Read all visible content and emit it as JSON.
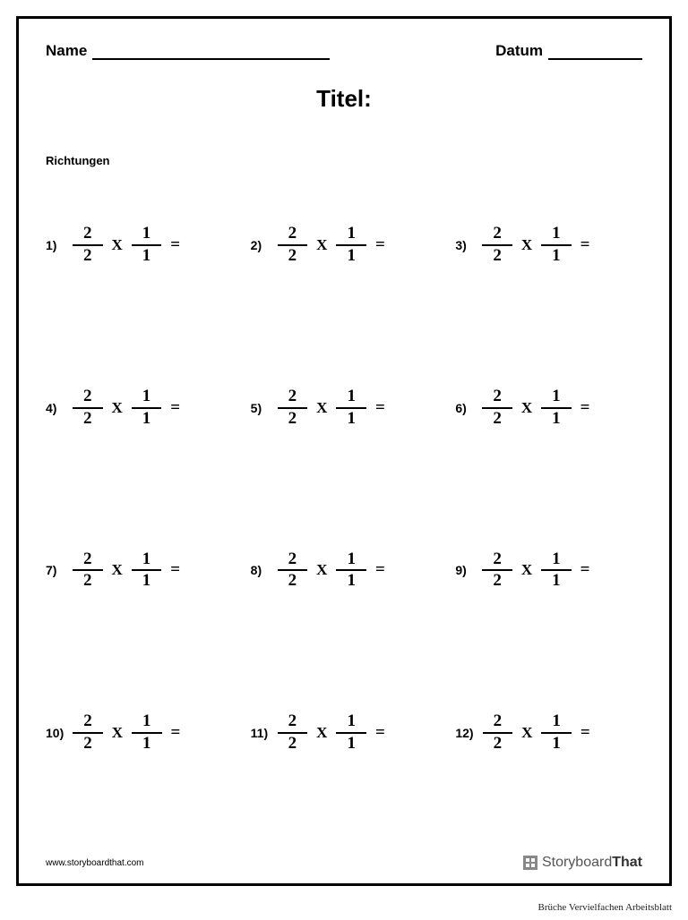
{
  "header": {
    "name_label": "Name",
    "date_label": "Datum"
  },
  "title": "Titel:",
  "directions_label": "Richtungen",
  "problems": [
    {
      "num": "1)",
      "f1n": "2",
      "f1d": "2",
      "op": "X",
      "f2n": "1",
      "f2d": "1",
      "eq": "="
    },
    {
      "num": "2)",
      "f1n": "2",
      "f1d": "2",
      "op": "X",
      "f2n": "1",
      "f2d": "1",
      "eq": "="
    },
    {
      "num": "3)",
      "f1n": "2",
      "f1d": "2",
      "op": "X",
      "f2n": "1",
      "f2d": "1",
      "eq": "="
    },
    {
      "num": "4)",
      "f1n": "2",
      "f1d": "2",
      "op": "X",
      "f2n": "1",
      "f2d": "1",
      "eq": "="
    },
    {
      "num": "5)",
      "f1n": "2",
      "f1d": "2",
      "op": "X",
      "f2n": "1",
      "f2d": "1",
      "eq": "="
    },
    {
      "num": "6)",
      "f1n": "2",
      "f1d": "2",
      "op": "X",
      "f2n": "1",
      "f2d": "1",
      "eq": "="
    },
    {
      "num": "7)",
      "f1n": "2",
      "f1d": "2",
      "op": "X",
      "f2n": "1",
      "f2d": "1",
      "eq": "="
    },
    {
      "num": "8)",
      "f1n": "2",
      "f1d": "2",
      "op": "X",
      "f2n": "1",
      "f2d": "1",
      "eq": "="
    },
    {
      "num": "9)",
      "f1n": "2",
      "f1d": "2",
      "op": "X",
      "f2n": "1",
      "f2d": "1",
      "eq": "="
    },
    {
      "num": "10)",
      "f1n": "2",
      "f1d": "2",
      "op": "X",
      "f2n": "1",
      "f2d": "1",
      "eq": "="
    },
    {
      "num": "11)",
      "f1n": "2",
      "f1d": "2",
      "op": "X",
      "f2n": "1",
      "f2d": "1",
      "eq": "="
    },
    {
      "num": "12)",
      "f1n": "2",
      "f1d": "2",
      "op": "X",
      "f2n": "1",
      "f2d": "1",
      "eq": "="
    }
  ],
  "footer": {
    "url": "www.storyboardthat.com",
    "logo_light": "Storyboard",
    "logo_bold": "That"
  },
  "caption": "Brüche Vervielfachen Arbeitsblatt",
  "colors": {
    "border": "#000000",
    "text": "#000000",
    "logo_gray": "#555555",
    "background": "#ffffff"
  }
}
